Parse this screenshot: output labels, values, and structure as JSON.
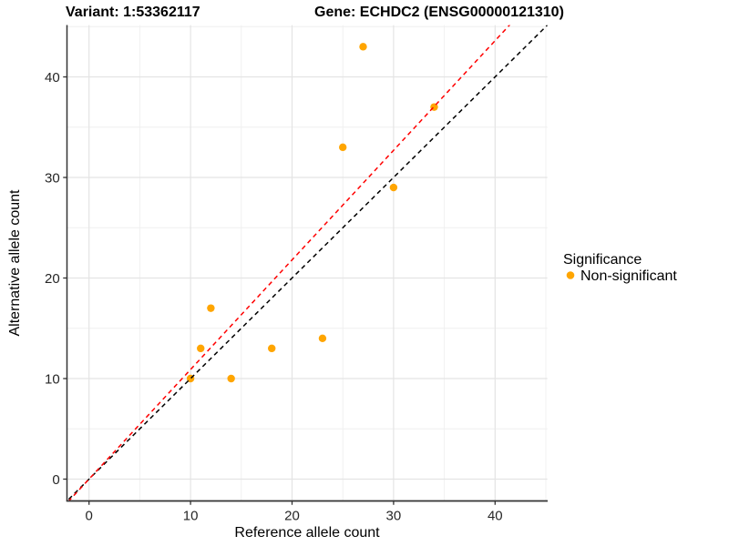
{
  "chart_data": {
    "type": "scatter",
    "titles": [
      "Variant: 1:53362117",
      "Gene: ECHDC2 (ENSG00000121310)"
    ],
    "xlabel": "Reference allele count",
    "ylabel": "Alternative allele count",
    "xlim": [
      -2.15,
      45.15
    ],
    "ylim": [
      -2.15,
      45.15
    ],
    "x_ticks": [
      0,
      10,
      20,
      30,
      40
    ],
    "y_ticks": [
      0,
      10,
      20,
      30,
      40
    ],
    "minor_x_ticks": [
      5,
      15,
      25,
      35,
      45
    ],
    "minor_y_ticks": [
      5,
      15,
      25,
      35,
      45
    ],
    "grid": true,
    "colors": {
      "point": "#FFA500",
      "identity_line": "#000000",
      "ratio_line": "#FF0000",
      "grid_major": "#E4E4E4",
      "grid_minor": "#EFEFEF",
      "axis_line": "#333333"
    },
    "series": [
      {
        "name": "Non-significant",
        "color": "#FFA500",
        "points": [
          {
            "x": 27,
            "y": 43
          },
          {
            "x": 34,
            "y": 37
          },
          {
            "x": 25,
            "y": 33
          },
          {
            "x": 30,
            "y": 29
          },
          {
            "x": 23,
            "y": 14
          },
          {
            "x": 12,
            "y": 17
          },
          {
            "x": 18,
            "y": 13
          },
          {
            "x": 11,
            "y": 13
          },
          {
            "x": 14,
            "y": 10
          },
          {
            "x": 10,
            "y": 10
          }
        ]
      }
    ],
    "reference_lines": [
      {
        "name": "identity",
        "slope": 1.0,
        "intercept": 0,
        "color": "#000000",
        "style": "dashed"
      },
      {
        "name": "expected-ratio",
        "slope": 1.09,
        "intercept": 0,
        "color": "#FF0000",
        "style": "dashed"
      }
    ],
    "legend": {
      "title": "Significance",
      "position": "right",
      "items": [
        {
          "label": "Non-significant",
          "color": "#FFA500",
          "marker": "circle"
        }
      ]
    }
  }
}
